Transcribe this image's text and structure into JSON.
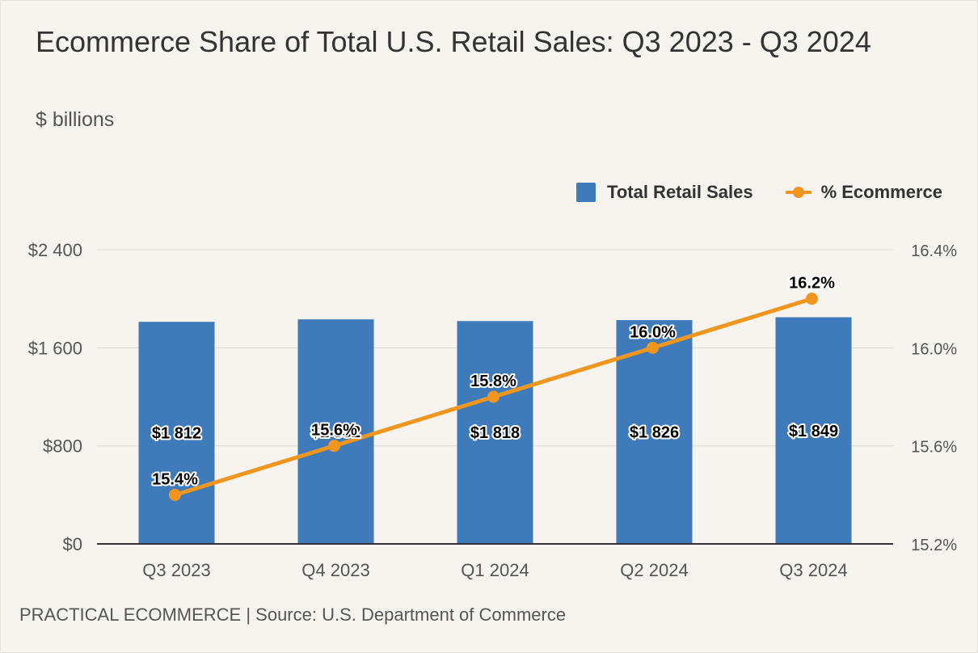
{
  "colors": {
    "bar": "#3f7bbb",
    "line": "#f0961f",
    "grid": "#dedad3",
    "axis": "#333333",
    "background": "#f7f3ee"
  },
  "chart_data": {
    "type": "bar",
    "title": "Ecommerce Share of Total U.S. Retail Sales: Q3 2023 - Q3 2024",
    "subtitle": "$ billions",
    "categories": [
      "Q3 2023",
      "Q4 2023",
      "Q1 2024",
      "Q2 2024",
      "Q3 2024"
    ],
    "series": [
      {
        "name": "Total Retail Sales",
        "type": "bar",
        "axis": "left",
        "values": [
          1812,
          1832,
          1818,
          1826,
          1849
        ],
        "labels": [
          "$1 812",
          "$1 832",
          "$1 818",
          "$1 826",
          "$1 849"
        ]
      },
      {
        "name": "% Ecommerce",
        "type": "line",
        "axis": "right",
        "values": [
          15.4,
          15.6,
          15.8,
          16.0,
          16.2
        ],
        "labels": [
          "15.4%",
          "15.6%",
          "15.8%",
          "16.0%",
          "16.2%"
        ]
      }
    ],
    "y_left": {
      "range": [
        0,
        2400
      ],
      "ticks": [
        0,
        800,
        1600,
        2400
      ],
      "tick_labels": [
        "$0",
        "$800",
        "$1 600",
        "$2 400"
      ]
    },
    "y_right": {
      "range": [
        15.2,
        16.4
      ],
      "ticks": [
        15.2,
        15.6,
        16.0,
        16.4
      ],
      "tick_labels": [
        "15.2%",
        "15.6%",
        "16.0%",
        "16.4%"
      ]
    },
    "legend": {
      "position": "top-right",
      "items": [
        "Total Retail Sales",
        "% Ecommerce"
      ]
    },
    "grid": true
  },
  "footer": "PRACTICAL ECOMMERCE | Source: U.S. Department of Commerce"
}
